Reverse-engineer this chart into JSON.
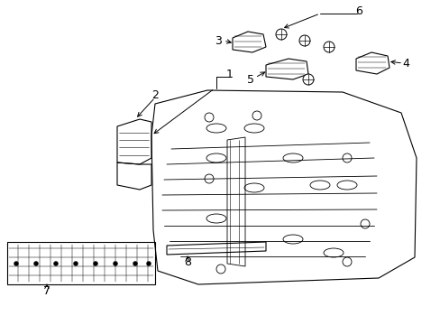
{
  "bg_color": "#ffffff",
  "line_color": "#000000",
  "figsize": [
    4.89,
    3.6
  ],
  "dpi": 100,
  "label_fs": 9
}
